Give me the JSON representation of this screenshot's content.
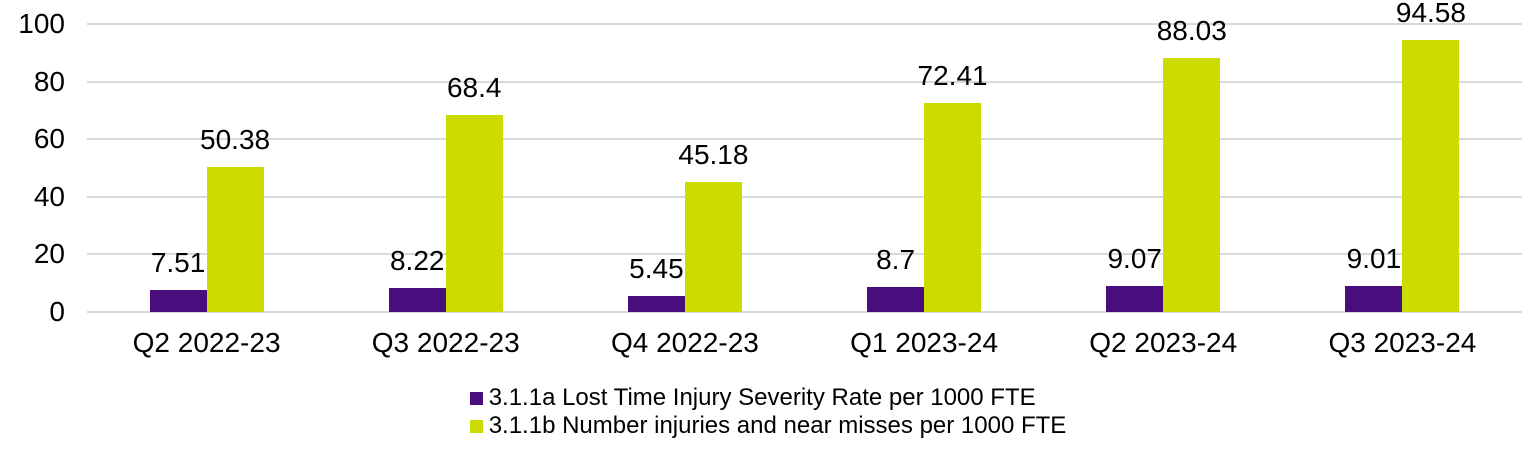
{
  "chart_data": {
    "type": "bar",
    "title": "",
    "categories": [
      "Q2 2022-23",
      "Q3 2022-23",
      "Q4 2022-23",
      "Q1 2023-24",
      "Q2 2023-24",
      "Q3 2023-24"
    ],
    "series": [
      {
        "name": "3.1.1a Lost Time Injury Severity Rate per 1000 FTE",
        "color": "#4A0D7E",
        "values": [
          7.51,
          8.22,
          5.45,
          8.7,
          9.07,
          9.01
        ],
        "labels": [
          "7.51",
          "8.22",
          "5.45",
          "8.7",
          "9.07",
          "9.01"
        ]
      },
      {
        "name": "3.1.1b Number injuries and near misses per 1000 FTE",
        "color": "#CCDC00",
        "values": [
          50.38,
          68.4,
          45.18,
          72.41,
          88.03,
          94.58
        ],
        "labels": [
          "50.38",
          "68.4",
          "45.18",
          "72.41",
          "88.03",
          "94.58"
        ]
      }
    ],
    "y_ticks": [
      0,
      20,
      40,
      60,
      80,
      100
    ],
    "ylim": [
      0,
      100
    ],
    "xlabel": "",
    "ylabel": "",
    "grid": true,
    "legend_position": "bottom-center",
    "colors": {
      "gridline": "#D9D9D9",
      "text": "#000000",
      "background": "#FFFFFF"
    }
  }
}
